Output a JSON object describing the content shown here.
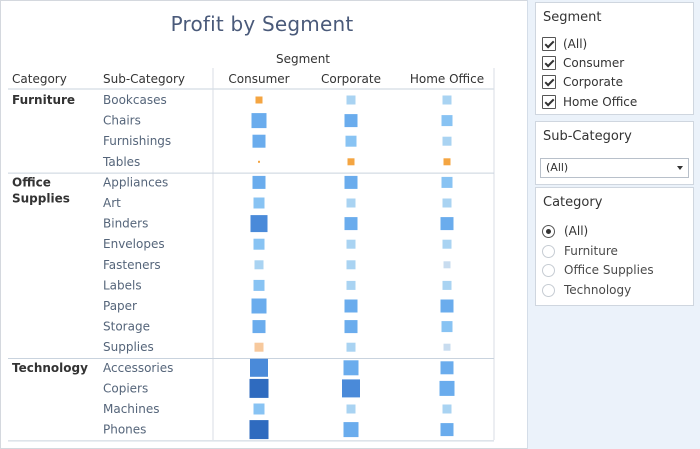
{
  "title": "Profit by Segment",
  "colors": {
    "negative_light": "#f7c99d",
    "negative_strong": "#f4a542",
    "positive_1": "#c8dcef",
    "positive_2": "#a9d3f2",
    "positive_3": "#88c3f3",
    "positive_4": "#6aaced",
    "positive_5": "#4a8ad9",
    "positive_6": "#2f6bbf"
  },
  "chart_data": {
    "type": "table",
    "title": "Profit by Segment",
    "column_group_header": "Segment",
    "header": {
      "category": "Category",
      "subcategory": "Sub-Category"
    },
    "segments": [
      "Consumer",
      "Corporate",
      "Home Office"
    ],
    "encoding": "square size and color by profit level (orange = negative, blue = positive)",
    "groups": [
      {
        "category": "Furniture",
        "rows": [
          {
            "subcategory": "Bookcases",
            "cells": [
              {
                "level": 2,
                "sign": "neg"
              },
              {
                "level": 3,
                "sign": "pos"
              },
              {
                "level": 3,
                "sign": "pos"
              }
            ]
          },
          {
            "subcategory": "Chairs",
            "cells": [
              {
                "level": 6,
                "sign": "pos"
              },
              {
                "level": 5,
                "sign": "pos"
              },
              {
                "level": 4,
                "sign": "pos"
              }
            ]
          },
          {
            "subcategory": "Furnishings",
            "cells": [
              {
                "level": 5,
                "sign": "pos"
              },
              {
                "level": 4,
                "sign": "pos"
              },
              {
                "level": 3,
                "sign": "pos"
              }
            ]
          },
          {
            "subcategory": "Tables",
            "cells": [
              {
                "level": 1,
                "sign": "neg"
              },
              {
                "level": 2,
                "sign": "neg"
              },
              {
                "level": 2,
                "sign": "neg"
              }
            ]
          }
        ]
      },
      {
        "category": "Office Supplies",
        "rows": [
          {
            "subcategory": "Appliances",
            "cells": [
              {
                "level": 5,
                "sign": "pos"
              },
              {
                "level": 5,
                "sign": "pos"
              },
              {
                "level": 4,
                "sign": "pos"
              }
            ]
          },
          {
            "subcategory": "Art",
            "cells": [
              {
                "level": 4,
                "sign": "pos"
              },
              {
                "level": 3,
                "sign": "pos"
              },
              {
                "level": 3,
                "sign": "pos"
              }
            ]
          },
          {
            "subcategory": "Binders",
            "cells": [
              {
                "level": 7,
                "sign": "pos"
              },
              {
                "level": 5,
                "sign": "pos"
              },
              {
                "level": 5,
                "sign": "pos"
              }
            ]
          },
          {
            "subcategory": "Envelopes",
            "cells": [
              {
                "level": 4,
                "sign": "pos"
              },
              {
                "level": 3,
                "sign": "pos"
              },
              {
                "level": 3,
                "sign": "pos"
              }
            ]
          },
          {
            "subcategory": "Fasteners",
            "cells": [
              {
                "level": 3,
                "sign": "pos"
              },
              {
                "level": 3,
                "sign": "pos"
              },
              {
                "level": 2,
                "sign": "pos"
              }
            ]
          },
          {
            "subcategory": "Labels",
            "cells": [
              {
                "level": 4,
                "sign": "pos"
              },
              {
                "level": 3,
                "sign": "pos"
              },
              {
                "level": 3,
                "sign": "pos"
              }
            ]
          },
          {
            "subcategory": "Paper",
            "cells": [
              {
                "level": 6,
                "sign": "pos"
              },
              {
                "level": 5,
                "sign": "pos"
              },
              {
                "level": 5,
                "sign": "pos"
              }
            ]
          },
          {
            "subcategory": "Storage",
            "cells": [
              {
                "level": 5,
                "sign": "pos"
              },
              {
                "level": 5,
                "sign": "pos"
              },
              {
                "level": 4,
                "sign": "pos"
              }
            ]
          },
          {
            "subcategory": "Supplies",
            "cells": [
              {
                "level": 3,
                "sign": "neg"
              },
              {
                "level": 3,
                "sign": "pos"
              },
              {
                "level": 2,
                "sign": "pos"
              }
            ]
          }
        ]
      },
      {
        "category": "Technology",
        "rows": [
          {
            "subcategory": "Accessories",
            "cells": [
              {
                "level": 8,
                "sign": "pos"
              },
              {
                "level": 6,
                "sign": "pos"
              },
              {
                "level": 5,
                "sign": "pos"
              }
            ]
          },
          {
            "subcategory": "Copiers",
            "cells": [
              {
                "level": 9,
                "sign": "pos"
              },
              {
                "level": 8,
                "sign": "pos"
              },
              {
                "level": 6,
                "sign": "pos"
              }
            ]
          },
          {
            "subcategory": "Machines",
            "cells": [
              {
                "level": 4,
                "sign": "pos"
              },
              {
                "level": 3,
                "sign": "pos"
              },
              {
                "level": 3,
                "sign": "pos"
              }
            ]
          },
          {
            "subcategory": "Phones",
            "cells": [
              {
                "level": 9,
                "sign": "pos"
              },
              {
                "level": 6,
                "sign": "pos"
              },
              {
                "level": 5,
                "sign": "pos"
              }
            ]
          }
        ]
      }
    ]
  },
  "filters": {
    "segment": {
      "title": "Segment",
      "options": [
        {
          "label": "(All)",
          "checked": true
        },
        {
          "label": "Consumer",
          "checked": true
        },
        {
          "label": "Corporate",
          "checked": true
        },
        {
          "label": "Home Office",
          "checked": true
        }
      ]
    },
    "subcategory": {
      "title": "Sub-Category",
      "selected": "(All)"
    },
    "category": {
      "title": "Category",
      "options": [
        {
          "label": "(All)",
          "selected": true
        },
        {
          "label": "Furniture",
          "selected": false
        },
        {
          "label": "Office Supplies",
          "selected": false
        },
        {
          "label": "Technology",
          "selected": false
        }
      ]
    }
  }
}
